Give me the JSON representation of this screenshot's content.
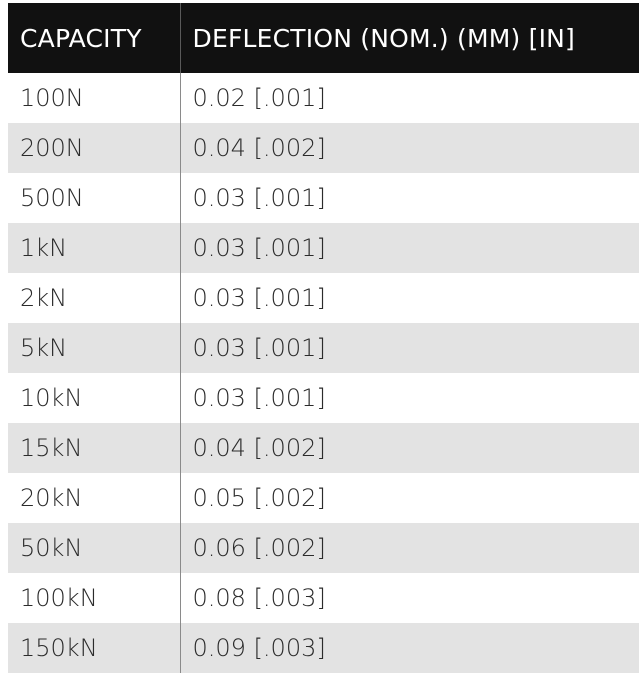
{
  "table": {
    "headers": {
      "capacity": "CAPACITY",
      "deflection": "DEFLECTION (NOM.) (MM) [IN]"
    },
    "rows": [
      {
        "capacity": "100N",
        "deflection": "0.02 [.001]"
      },
      {
        "capacity": "200N",
        "deflection": "0.04 [.002]"
      },
      {
        "capacity": "500N",
        "deflection": "0.03 [.001]"
      },
      {
        "capacity": "1kN",
        "deflection": "0.03 [.001]"
      },
      {
        "capacity": "2kN",
        "deflection": "0.03 [.001]"
      },
      {
        "capacity": "5kN",
        "deflection": "0.03 [.001]"
      },
      {
        "capacity": "10kN",
        "deflection": "0.03 [.001]"
      },
      {
        "capacity": "15kN",
        "deflection": "0.04 [.002]"
      },
      {
        "capacity": "20kN",
        "deflection": "0.05 [.002]"
      },
      {
        "capacity": "50kN",
        "deflection": "0.06 [.002]"
      },
      {
        "capacity": "100kN",
        "deflection": "0.08 [.003]"
      },
      {
        "capacity": "150kN",
        "deflection": "0.09 [.003]"
      }
    ]
  },
  "colors": {
    "header_background": "#111111",
    "header_text": "#ffffff",
    "stripe_background": "#e3e3e3",
    "body_text": "#2b2b2b"
  }
}
